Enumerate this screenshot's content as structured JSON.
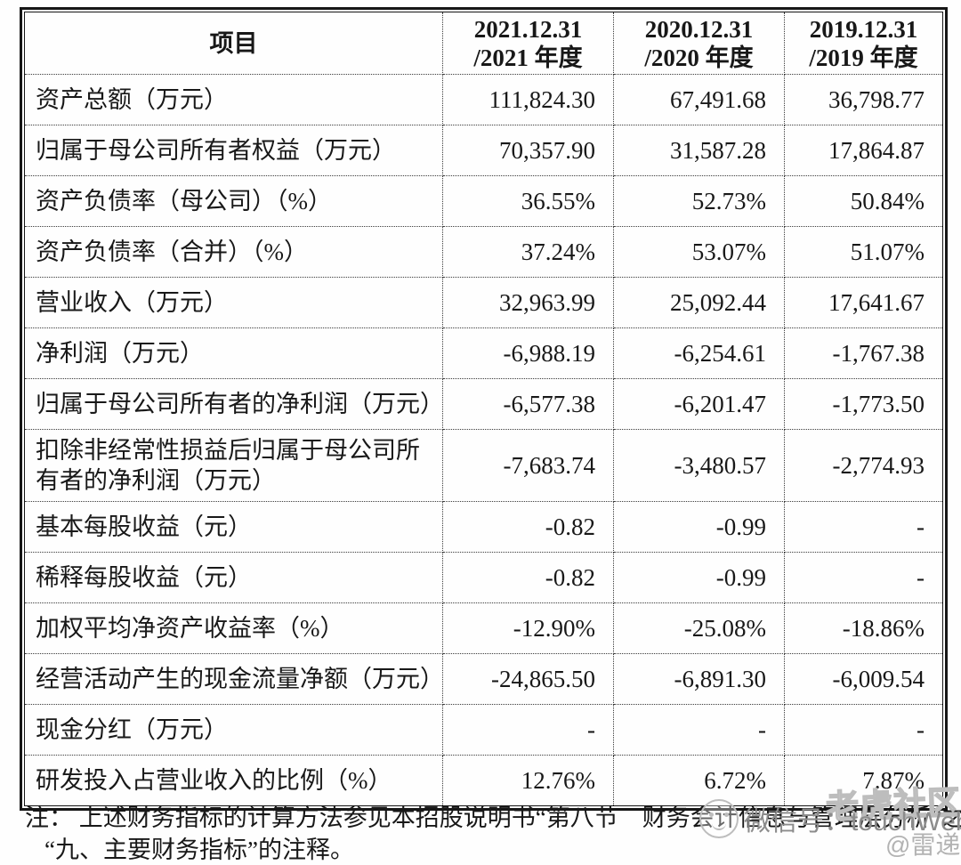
{
  "table": {
    "header": {
      "item_label": "项目",
      "periods": [
        {
          "line1": "2021.12.31",
          "line2": "/2021 年度"
        },
        {
          "line1": "2020.12.31",
          "line2": "/2020 年度"
        },
        {
          "line1": "2019.12.31",
          "line2": "/2019 年度"
        }
      ]
    },
    "rows": [
      {
        "label": "资产总额（万元）",
        "values": [
          "111,824.30",
          "67,491.68",
          "36,798.77"
        ]
      },
      {
        "label": "归属于母公司所有者权益（万元）",
        "values": [
          "70,357.90",
          "31,587.28",
          "17,864.87"
        ]
      },
      {
        "label": "资产负债率（母公司）（%）",
        "values": [
          "36.55%",
          "52.73%",
          "50.84%"
        ]
      },
      {
        "label": "资产负债率（合并）（%）",
        "values": [
          "37.24%",
          "53.07%",
          "51.07%"
        ]
      },
      {
        "label": "营业收入（万元）",
        "values": [
          "32,963.99",
          "25,092.44",
          "17,641.67"
        ]
      },
      {
        "label": "净利润（万元）",
        "values": [
          "-6,988.19",
          "-6,254.61",
          "-1,767.38"
        ]
      },
      {
        "label": "归属于母公司所有者的净利润（万元）",
        "values": [
          "-6,577.38",
          "-6,201.47",
          "-1,773.50"
        ]
      },
      {
        "label": "扣除非经常性损益后归属于母公司所有者的净利润（万元）",
        "values": [
          "-7,683.74",
          "-3,480.57",
          "-2,774.93"
        ]
      },
      {
        "label": "基本每股收益（元）",
        "values": [
          "-0.82",
          "-0.99",
          "-"
        ]
      },
      {
        "label": "稀释每股收益（元）",
        "values": [
          "-0.82",
          "-0.99",
          "-"
        ]
      },
      {
        "label": "加权平均净资产收益率（%）",
        "values": [
          "-12.90%",
          "-25.08%",
          "-18.86%"
        ]
      },
      {
        "label": "经营活动产生的现金流量净额（万元）",
        "values": [
          "-24,865.50",
          "-6,891.30",
          "-6,009.54"
        ]
      },
      {
        "label": "现金分红（万元）",
        "values": [
          "-",
          "-",
          "-"
        ]
      },
      {
        "label": "研发投入占营业收入的比例（%）",
        "values": [
          "12.76%",
          "6.72%",
          "7.87%"
        ]
      }
    ]
  },
  "note": {
    "line1": "注： 上述财务指标的计算方法参见本招股说明书“第八节　财务会计信息与管理层分析”之",
    "line2": "“九、主要财务指标”的注释。"
  },
  "watermarks": {
    "community": "老虎社区",
    "wechat": "微信号：touchWeb",
    "author": "@雷递",
    "gray": "#8c8c8c"
  }
}
